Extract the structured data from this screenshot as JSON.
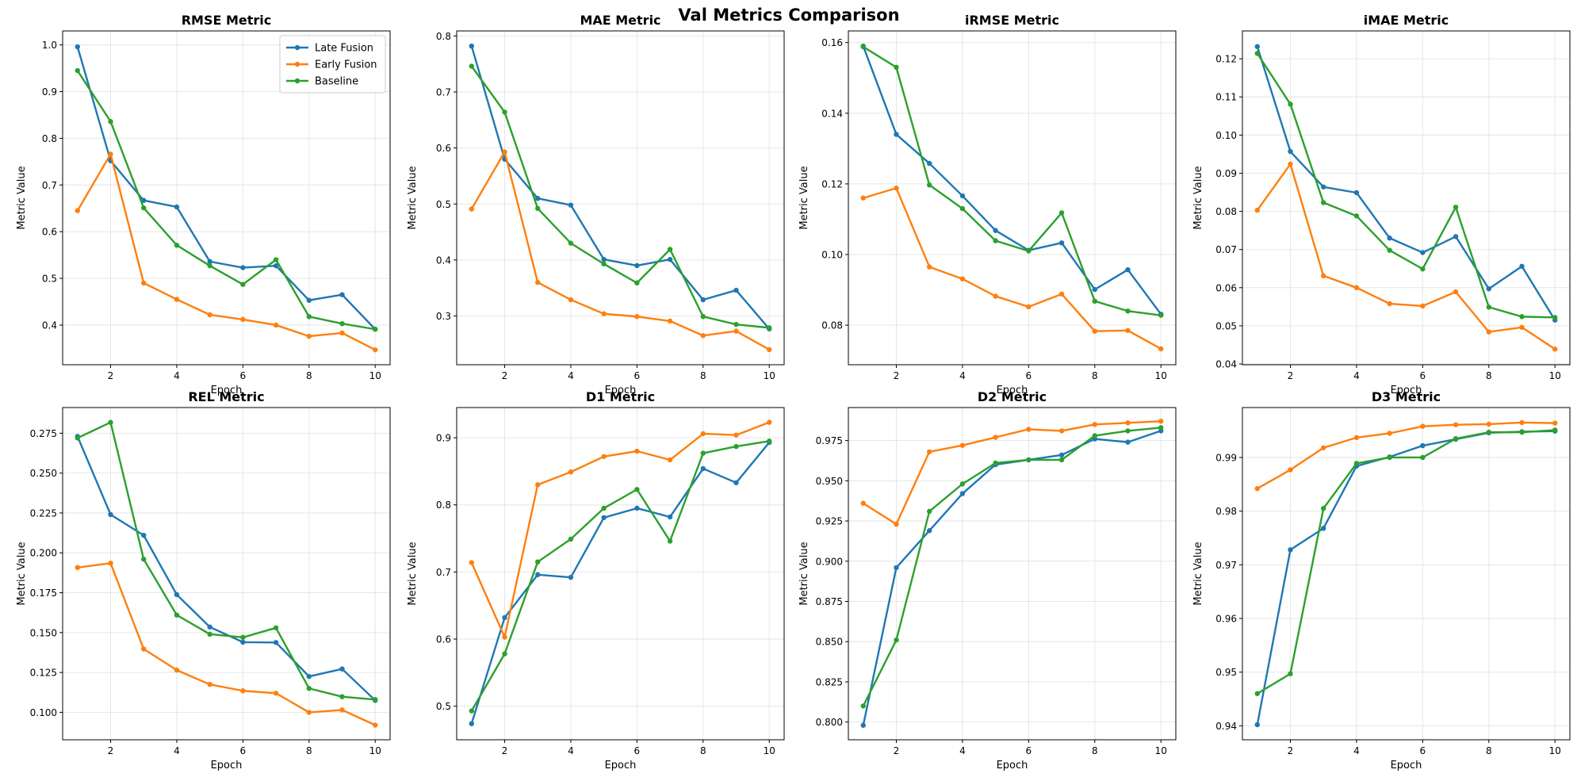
{
  "figure": {
    "title": "Val Metrics Comparison"
  },
  "colors": {
    "Late Fusion": "#1f77b4",
    "Early Fusion": "#ff7f0e",
    "Baseline": "#2ca02c"
  },
  "chart_data": [
    {
      "type": "line",
      "title": "RMSE Metric",
      "xlabel": "Epoch",
      "ylabel": "Metric Value",
      "grid": true,
      "legend": "upper-right",
      "xlim": [
        0.55,
        10.45
      ],
      "ylim": [
        0.315,
        1.03
      ],
      "xticks": [
        2,
        4,
        6,
        8,
        10
      ],
      "yticks": [
        0.4,
        0.5,
        0.6,
        0.7,
        0.8,
        0.9,
        1.0
      ],
      "xtick_labels": [
        "2",
        "4",
        "6",
        "8",
        "10"
      ],
      "ytick_labels": [
        "0.4",
        "0.5",
        "0.6",
        "0.7",
        "0.8",
        "0.9",
        "1.0"
      ],
      "x": [
        1,
        2,
        3,
        4,
        5,
        6,
        7,
        8,
        9,
        10
      ],
      "series": [
        {
          "name": "Late Fusion",
          "values": [
            0.996,
            0.752,
            0.667,
            0.653,
            0.536,
            0.523,
            0.527,
            0.453,
            0.465,
            0.391
          ]
        },
        {
          "name": "Early Fusion",
          "values": [
            0.645,
            0.766,
            0.49,
            0.455,
            0.422,
            0.412,
            0.4,
            0.376,
            0.383,
            0.347
          ]
        },
        {
          "name": "Baseline",
          "values": [
            0.945,
            0.836,
            0.651,
            0.571,
            0.527,
            0.487,
            0.54,
            0.418,
            0.403,
            0.391
          ]
        }
      ]
    },
    {
      "type": "line",
      "title": "MAE Metric",
      "xlabel": "Epoch",
      "ylabel": "Metric Value",
      "grid": true,
      "xlim": [
        0.55,
        10.45
      ],
      "ylim": [
        0.213,
        0.809
      ],
      "xticks": [
        2,
        4,
        6,
        8,
        10
      ],
      "yticks": [
        0.3,
        0.4,
        0.5,
        0.6,
        0.7,
        0.8
      ],
      "xtick_labels": [
        "2",
        "4",
        "6",
        "8",
        "10"
      ],
      "ytick_labels": [
        "0.3",
        "0.4",
        "0.5",
        "0.6",
        "0.7",
        "0.8"
      ],
      "x": [
        1,
        2,
        3,
        4,
        5,
        6,
        7,
        8,
        9,
        10
      ],
      "series": [
        {
          "name": "Late Fusion",
          "values": [
            0.782,
            0.58,
            0.51,
            0.498,
            0.401,
            0.39,
            0.401,
            0.329,
            0.346,
            0.277
          ]
        },
        {
          "name": "Early Fusion",
          "values": [
            0.491,
            0.593,
            0.36,
            0.329,
            0.304,
            0.299,
            0.291,
            0.265,
            0.273,
            0.24
          ]
        },
        {
          "name": "Baseline",
          "values": [
            0.746,
            0.664,
            0.492,
            0.43,
            0.393,
            0.359,
            0.419,
            0.299,
            0.285,
            0.279
          ]
        }
      ]
    },
    {
      "type": "line",
      "title": "iRMSE Metric",
      "xlabel": "Epoch",
      "ylabel": "Metric Value",
      "grid": true,
      "xlim": [
        0.55,
        10.45
      ],
      "ylim": [
        0.0688,
        0.1633
      ],
      "xticks": [
        2,
        4,
        6,
        8,
        10
      ],
      "yticks": [
        0.08,
        0.1,
        0.12,
        0.14,
        0.16
      ],
      "xtick_labels": [
        "2",
        "4",
        "6",
        "8",
        "10"
      ],
      "ytick_labels": [
        "0.08",
        "0.10",
        "0.12",
        "0.14",
        "0.16"
      ],
      "x": [
        1,
        2,
        3,
        4,
        5,
        6,
        7,
        8,
        9,
        10
      ],
      "series": [
        {
          "name": "Late Fusion",
          "values": [
            0.159,
            0.134,
            0.1258,
            0.1166,
            0.1068,
            0.1012,
            0.1033,
            0.0901,
            0.0957,
            0.0831
          ]
        },
        {
          "name": "Early Fusion",
          "values": [
            0.116,
            0.1188,
            0.0965,
            0.0931,
            0.0882,
            0.0852,
            0.0888,
            0.0783,
            0.0785,
            0.0733
          ]
        },
        {
          "name": "Baseline",
          "values": [
            0.1588,
            0.153,
            0.1197,
            0.113,
            0.1039,
            0.101,
            0.1118,
            0.0868,
            0.084,
            0.0828
          ]
        }
      ]
    },
    {
      "type": "line",
      "title": "iMAE Metric",
      "xlabel": "Epoch",
      "ylabel": "Metric Value",
      "grid": true,
      "xlim": [
        0.55,
        10.45
      ],
      "ylim": [
        0.0398,
        0.1273
      ],
      "xticks": [
        2,
        4,
        6,
        8,
        10
      ],
      "yticks": [
        0.04,
        0.05,
        0.06,
        0.07,
        0.08,
        0.09,
        0.1,
        0.11,
        0.12
      ],
      "xtick_labels": [
        "2",
        "4",
        "6",
        "8",
        "10"
      ],
      "ytick_labels": [
        "0.04",
        "0.05",
        "0.06",
        "0.07",
        "0.08",
        "0.09",
        "0.10",
        "0.11",
        "0.12"
      ],
      "x": [
        1,
        2,
        3,
        4,
        5,
        6,
        7,
        8,
        9,
        10
      ],
      "series": [
        {
          "name": "Late Fusion",
          "values": [
            0.1232,
            0.0957,
            0.0864,
            0.0849,
            0.073,
            0.0692,
            0.0734,
            0.0597,
            0.0656,
            0.0515
          ]
        },
        {
          "name": "Early Fusion",
          "values": [
            0.0803,
            0.0924,
            0.0631,
            0.06,
            0.0558,
            0.0552,
            0.0589,
            0.0484,
            0.0496,
            0.0439
          ]
        },
        {
          "name": "Baseline",
          "values": [
            0.1214,
            0.1081,
            0.0823,
            0.0788,
            0.0698,
            0.0649,
            0.0811,
            0.0549,
            0.0524,
            0.0522
          ]
        }
      ]
    },
    {
      "type": "line",
      "title": "REL Metric",
      "xlabel": "Epoch",
      "ylabel": "Metric Value",
      "grid": true,
      "xlim": [
        0.55,
        10.45
      ],
      "ylim": [
        0.0828,
        0.2911
      ],
      "xticks": [
        2,
        4,
        6,
        8,
        10
      ],
      "yticks": [
        0.1,
        0.125,
        0.15,
        0.175,
        0.2,
        0.225,
        0.25,
        0.275
      ],
      "xtick_labels": [
        "2",
        "4",
        "6",
        "8",
        "10"
      ],
      "ytick_labels": [
        "0.100",
        "0.125",
        "0.150",
        "0.175",
        "0.200",
        "0.225",
        "0.250",
        "0.275"
      ],
      "x": [
        1,
        2,
        3,
        4,
        5,
        6,
        7,
        8,
        9,
        10
      ],
      "series": [
        {
          "name": "Late Fusion",
          "values": [
            0.273,
            0.224,
            0.211,
            0.1738,
            0.1535,
            0.144,
            0.1438,
            0.1225,
            0.1272,
            0.1075
          ]
        },
        {
          "name": "Early Fusion",
          "values": [
            0.1908,
            0.1935,
            0.1397,
            0.1265,
            0.1175,
            0.1135,
            0.112,
            0.1,
            0.1015,
            0.092
          ]
        },
        {
          "name": "Baseline",
          "values": [
            0.272,
            0.2818,
            0.196,
            0.161,
            0.149,
            0.147,
            0.153,
            0.115,
            0.1098,
            0.108
          ]
        }
      ]
    },
    {
      "type": "line",
      "title": "D1 Metric",
      "xlabel": "Epoch",
      "ylabel": "Metric Value",
      "grid": true,
      "xlim": [
        0.55,
        10.45
      ],
      "ylim": [
        0.45,
        0.945
      ],
      "xticks": [
        2,
        4,
        6,
        8,
        10
      ],
      "yticks": [
        0.5,
        0.6,
        0.7,
        0.8,
        0.9
      ],
      "xtick_labels": [
        "2",
        "4",
        "6",
        "8",
        "10"
      ],
      "ytick_labels": [
        "0.5",
        "0.6",
        "0.7",
        "0.8",
        "0.9"
      ],
      "x": [
        1,
        2,
        3,
        4,
        5,
        6,
        7,
        8,
        9,
        10
      ],
      "series": [
        {
          "name": "Late Fusion",
          "values": [
            0.474,
            0.632,
            0.696,
            0.692,
            0.781,
            0.795,
            0.782,
            0.854,
            0.833,
            0.893
          ]
        },
        {
          "name": "Early Fusion",
          "values": [
            0.714,
            0.603,
            0.83,
            0.849,
            0.872,
            0.88,
            0.867,
            0.906,
            0.904,
            0.923
          ]
        },
        {
          "name": "Baseline",
          "values": [
            0.493,
            0.578,
            0.715,
            0.749,
            0.795,
            0.823,
            0.746,
            0.877,
            0.887,
            0.895
          ]
        }
      ]
    },
    {
      "type": "line",
      "title": "D2 Metric",
      "xlabel": "Epoch",
      "ylabel": "Metric Value",
      "grid": true,
      "xlim": [
        0.55,
        10.45
      ],
      "ylim": [
        0.789,
        0.9955
      ],
      "xticks": [
        2,
        4,
        6,
        8,
        10
      ],
      "yticks": [
        0.8,
        0.825,
        0.85,
        0.875,
        0.9,
        0.925,
        0.95,
        0.975
      ],
      "xtick_labels": [
        "2",
        "4",
        "6",
        "8",
        "10"
      ],
      "ytick_labels": [
        "0.800",
        "0.825",
        "0.850",
        "0.875",
        "0.900",
        "0.925",
        "0.950",
        "0.975"
      ],
      "x": [
        1,
        2,
        3,
        4,
        5,
        6,
        7,
        8,
        9,
        10
      ],
      "series": [
        {
          "name": "Late Fusion",
          "values": [
            0.798,
            0.896,
            0.919,
            0.942,
            0.96,
            0.963,
            0.966,
            0.976,
            0.974,
            0.981
          ]
        },
        {
          "name": "Early Fusion",
          "values": [
            0.936,
            0.923,
            0.968,
            0.972,
            0.977,
            0.982,
            0.981,
            0.985,
            0.986,
            0.987
          ]
        },
        {
          "name": "Baseline",
          "values": [
            0.81,
            0.851,
            0.931,
            0.948,
            0.961,
            0.963,
            0.963,
            0.978,
            0.981,
            0.983
          ]
        }
      ]
    },
    {
      "type": "line",
      "title": "D3 Metric",
      "xlabel": "Epoch",
      "ylabel": "Metric Value",
      "grid": true,
      "xlim": [
        0.55,
        10.45
      ],
      "ylim": [
        0.9374,
        0.9993
      ],
      "xticks": [
        2,
        4,
        6,
        8,
        10
      ],
      "yticks": [
        0.94,
        0.95,
        0.96,
        0.97,
        0.98,
        0.99
      ],
      "xtick_labels": [
        "2",
        "4",
        "6",
        "8",
        "10"
      ],
      "ytick_labels": [
        "0.94",
        "0.95",
        "0.96",
        "0.97",
        "0.98",
        "0.99"
      ],
      "x": [
        1,
        2,
        3,
        4,
        5,
        6,
        7,
        8,
        9,
        10
      ],
      "series": [
        {
          "name": "Late Fusion",
          "values": [
            0.9402,
            0.9728,
            0.9768,
            0.9884,
            0.9901,
            0.9922,
            0.9934,
            0.9946,
            0.9948,
            0.9949
          ]
        },
        {
          "name": "Early Fusion",
          "values": [
            0.9842,
            0.9877,
            0.9918,
            0.9937,
            0.9945,
            0.9958,
            0.9961,
            0.9962,
            0.9965,
            0.9964
          ]
        },
        {
          "name": "Baseline",
          "values": [
            0.946,
            0.9497,
            0.9805,
            0.9889,
            0.99,
            0.99,
            0.9935,
            0.9947,
            0.9947,
            0.9951
          ]
        }
      ]
    }
  ]
}
